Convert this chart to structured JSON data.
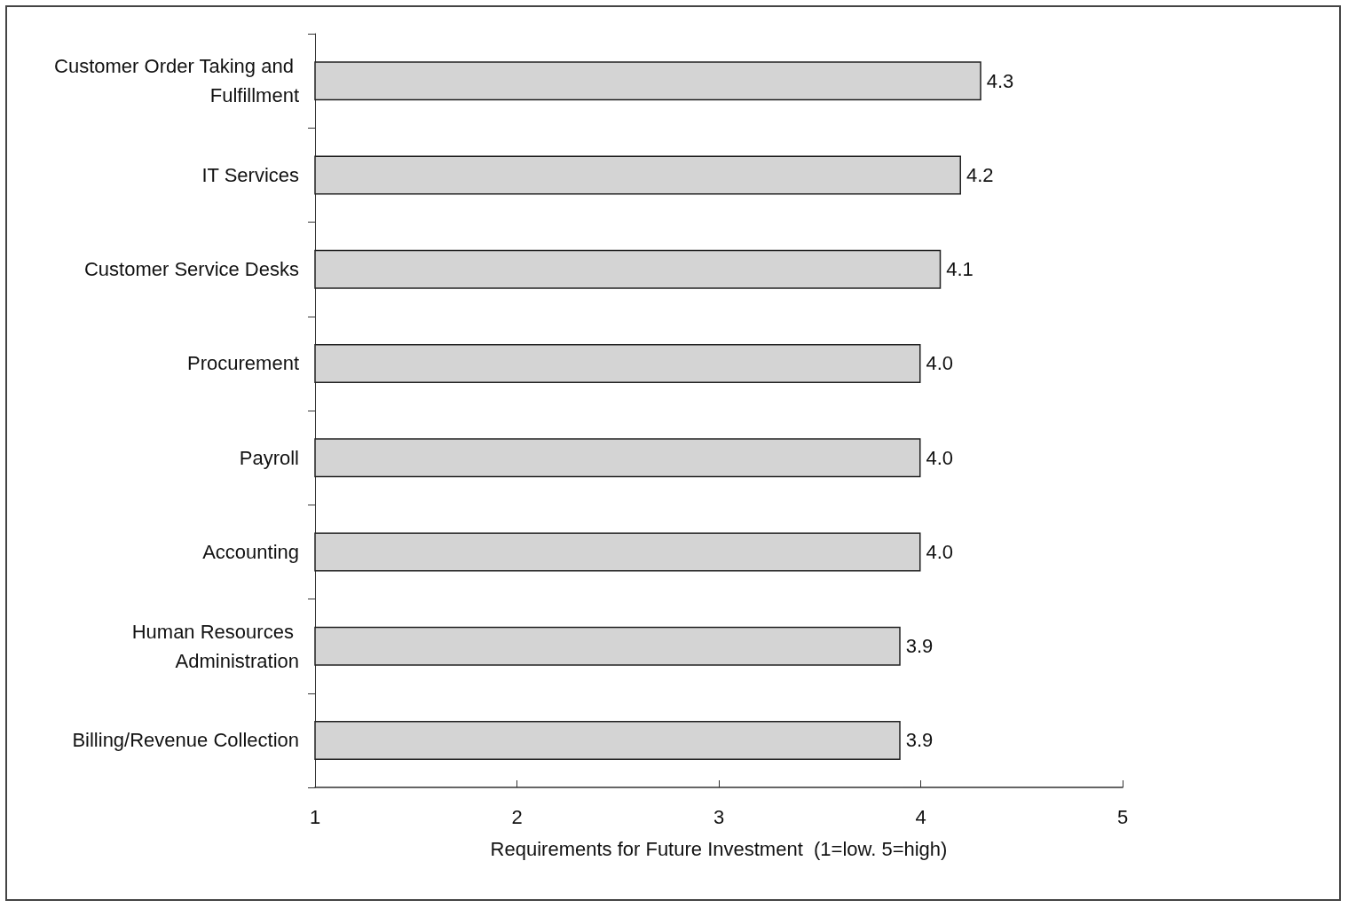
{
  "chart_data": {
    "type": "bar",
    "orientation": "horizontal",
    "xlabel": "Requirements for Future Investment  (1=low. 5=high)",
    "categories": [
      "Customer Order Taking and Fulfillment",
      "IT Services",
      "Customer Service Desks",
      "Procurement",
      "Payroll",
      "Accounting",
      "Human Resources Administration",
      "Billing/Revenue Collection"
    ],
    "values": [
      4.3,
      4.2,
      4.1,
      4.0,
      4.0,
      4.0,
      3.9,
      3.9
    ],
    "value_labels": [
      "4.3",
      "4.2",
      "4.1",
      "4.0",
      "4.0",
      "4.0",
      "3.9",
      "3.9"
    ],
    "color": "#d4d4d4",
    "xlim": [
      1,
      5
    ],
    "xticks": [
      1,
      2,
      3,
      4,
      5
    ],
    "grid": false
  }
}
